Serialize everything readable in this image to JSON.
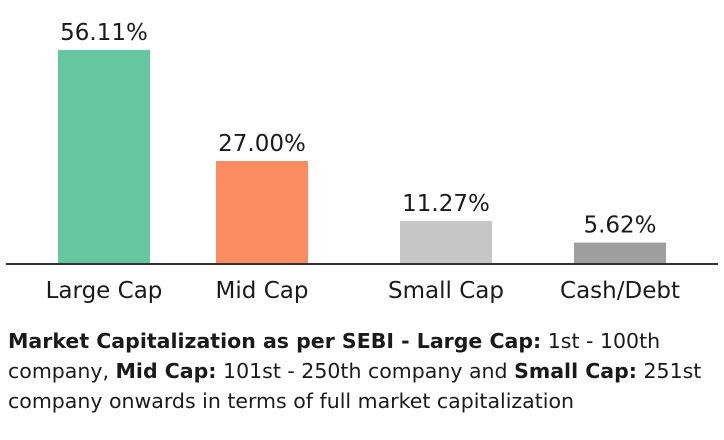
{
  "chart_data": {
    "type": "bar",
    "categories": [
      "Large Cap",
      "Mid Cap",
      "Small Cap",
      "Cash/Debt"
    ],
    "values": [
      56.11,
      27.0,
      11.27,
      5.62
    ],
    "value_labels": [
      "56.11%",
      "27.00%",
      "11.27%",
      "5.62%"
    ],
    "colors": [
      "#66c6a0",
      "#fc8d62",
      "#c6c6c6",
      "#9e9e9e"
    ],
    "ylim": [
      0,
      56.11
    ],
    "grid": false,
    "legend": "none",
    "title": "",
    "xlabel": "",
    "ylabel": ""
  },
  "footnote": {
    "lead_bold": "Market Capitalization as per SEBI - ",
    "large_label": "Large Cap:",
    "large_text": " 1st - 100th company, ",
    "mid_label": "Mid Cap:",
    "mid_text": " 101st - 250th company and ",
    "small_label": "Small Cap:",
    "small_text": " 251st company onwards in terms of full market capitalization"
  }
}
